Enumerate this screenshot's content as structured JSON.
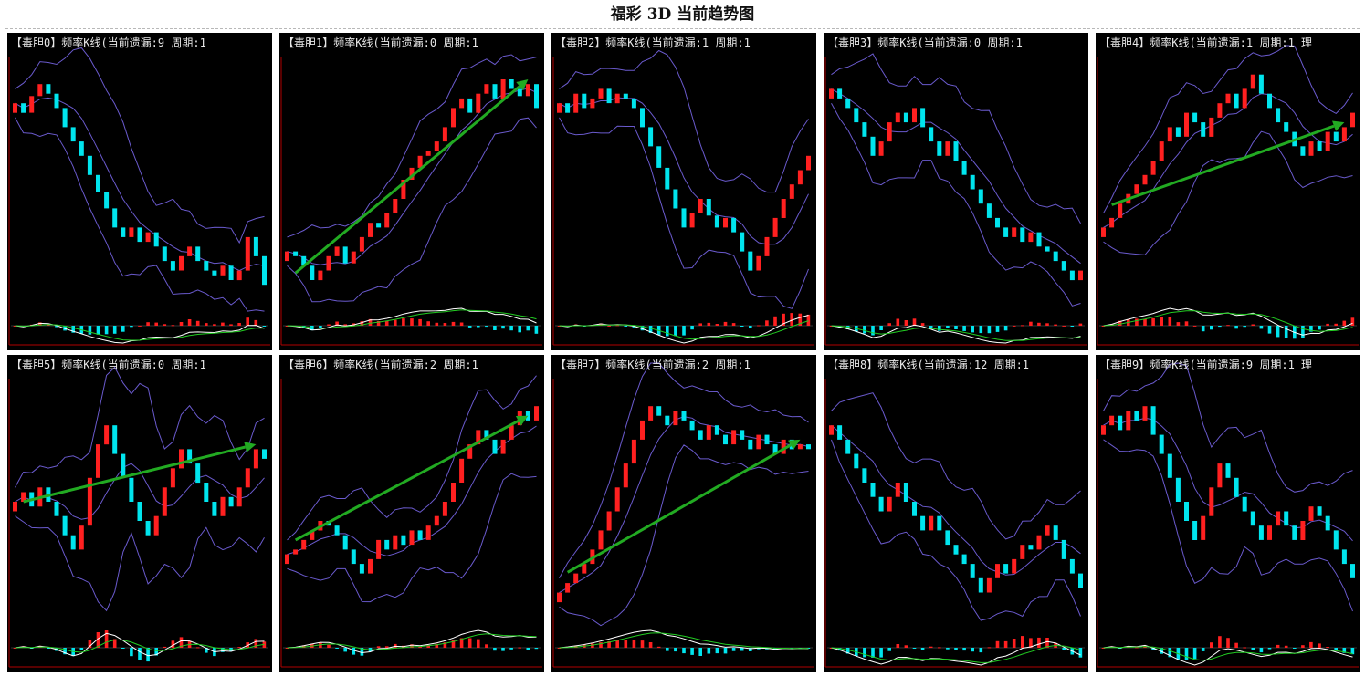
{
  "title": "福彩 3D 当前趋势图",
  "colors": {
    "background": "#000000",
    "up_candle": "#ff2020",
    "down_candle": "#00e5ee",
    "band_line": "#6a5acd",
    "axis": "#b00000",
    "macd_fast": "#ffffff",
    "macd_slow": "#22cc22",
    "trend_arrow": "#22aa22"
  },
  "chart_data": [
    {
      "type": "candlestick",
      "label": "【毒胆0】频率K线(当前遗漏:9 周期:1",
      "arrow": false,
      "closes": [
        0.82,
        0.78,
        0.85,
        0.9,
        0.86,
        0.8,
        0.72,
        0.66,
        0.6,
        0.52,
        0.45,
        0.38,
        0.3,
        0.26,
        0.3,
        0.24,
        0.28,
        0.22,
        0.16,
        0.12,
        0.18,
        0.22,
        0.16,
        0.12,
        0.1,
        0.14,
        0.08,
        0.12,
        0.26,
        0.18,
        0.06
      ]
    },
    {
      "type": "candlestick",
      "label": "【毒胆1】频率K线(当前遗漏:0 周期:1",
      "arrow": true,
      "closes": [
        0.2,
        0.18,
        0.14,
        0.08,
        0.12,
        0.18,
        0.22,
        0.15,
        0.2,
        0.26,
        0.32,
        0.3,
        0.36,
        0.42,
        0.5,
        0.55,
        0.6,
        0.62,
        0.66,
        0.72,
        0.8,
        0.84,
        0.78,
        0.86,
        0.9,
        0.84,
        0.92,
        0.88,
        0.85,
        0.9,
        0.8
      ]
    },
    {
      "type": "candlestick",
      "label": "【毒胆2】频率K线(当前遗漏:1 周期:1",
      "arrow": false,
      "closes": [
        0.82,
        0.78,
        0.86,
        0.8,
        0.84,
        0.88,
        0.82,
        0.86,
        0.84,
        0.8,
        0.72,
        0.64,
        0.55,
        0.46,
        0.38,
        0.3,
        0.36,
        0.42,
        0.35,
        0.3,
        0.34,
        0.28,
        0.2,
        0.12,
        0.18,
        0.26,
        0.34,
        0.42,
        0.48,
        0.54,
        0.6
      ]
    },
    {
      "type": "candlestick",
      "label": "【毒胆3】频率K线(当前遗漏:0 周期:1",
      "arrow": false,
      "closes": [
        0.88,
        0.84,
        0.8,
        0.74,
        0.68,
        0.6,
        0.66,
        0.74,
        0.78,
        0.74,
        0.8,
        0.72,
        0.66,
        0.6,
        0.66,
        0.58,
        0.52,
        0.46,
        0.4,
        0.34,
        0.3,
        0.26,
        0.3,
        0.24,
        0.28,
        0.22,
        0.2,
        0.16,
        0.12,
        0.08,
        0.12
      ]
    },
    {
      "type": "candlestick",
      "label": "【毒胆4】频率K线(当前遗漏:1 周期:1 理",
      "arrow": true,
      "closes": [
        0.3,
        0.34,
        0.4,
        0.44,
        0.48,
        0.52,
        0.58,
        0.66,
        0.72,
        0.68,
        0.78,
        0.74,
        0.68,
        0.76,
        0.82,
        0.86,
        0.8,
        0.88,
        0.94,
        0.86,
        0.8,
        0.74,
        0.7,
        0.64,
        0.6,
        0.66,
        0.62,
        0.7,
        0.66,
        0.72,
        0.78
      ]
    },
    {
      "type": "candlestick",
      "label": "【毒胆5】频率K线(当前遗漏:0 周期:1",
      "arrow": true,
      "closes": [
        0.5,
        0.54,
        0.48,
        0.56,
        0.5,
        0.44,
        0.36,
        0.3,
        0.4,
        0.6,
        0.74,
        0.82,
        0.7,
        0.6,
        0.5,
        0.42,
        0.36,
        0.44,
        0.56,
        0.64,
        0.72,
        0.66,
        0.58,
        0.5,
        0.44,
        0.52,
        0.48,
        0.56,
        0.64,
        0.72,
        0.68
      ]
    },
    {
      "type": "candlestick",
      "label": "【毒胆6】频率K线(当前遗漏:2 周期:1",
      "arrow": true,
      "closes": [
        0.28,
        0.3,
        0.34,
        0.38,
        0.42,
        0.4,
        0.36,
        0.3,
        0.24,
        0.2,
        0.26,
        0.34,
        0.3,
        0.36,
        0.32,
        0.38,
        0.34,
        0.4,
        0.44,
        0.5,
        0.58,
        0.68,
        0.74,
        0.8,
        0.76,
        0.7,
        0.76,
        0.82,
        0.88,
        0.84,
        0.9
      ]
    },
    {
      "type": "candlestick",
      "label": "【毒胆7】频率K线(当前遗漏:2 周期:1",
      "arrow": true,
      "closes": [
        0.12,
        0.16,
        0.2,
        0.24,
        0.3,
        0.38,
        0.46,
        0.56,
        0.66,
        0.76,
        0.84,
        0.9,
        0.86,
        0.82,
        0.88,
        0.84,
        0.8,
        0.76,
        0.82,
        0.78,
        0.74,
        0.8,
        0.76,
        0.72,
        0.78,
        0.74,
        0.7,
        0.76,
        0.72,
        0.74,
        0.72
      ]
    },
    {
      "type": "candlestick",
      "label": "【毒胆8】频率K线(当前遗漏:12 周期:1",
      "arrow": false,
      "closes": [
        0.82,
        0.76,
        0.7,
        0.64,
        0.58,
        0.52,
        0.46,
        0.52,
        0.58,
        0.5,
        0.44,
        0.38,
        0.44,
        0.38,
        0.32,
        0.28,
        0.24,
        0.18,
        0.12,
        0.18,
        0.24,
        0.2,
        0.26,
        0.32,
        0.3,
        0.36,
        0.4,
        0.34,
        0.26,
        0.2,
        0.14
      ]
    },
    {
      "type": "candlestick",
      "label": "【毒胆9】频率K线(当前遗漏:9 周期:1 理",
      "arrow": false,
      "closes": [
        0.82,
        0.86,
        0.8,
        0.88,
        0.84,
        0.9,
        0.78,
        0.7,
        0.6,
        0.5,
        0.42,
        0.34,
        0.44,
        0.56,
        0.66,
        0.6,
        0.52,
        0.46,
        0.4,
        0.34,
        0.4,
        0.46,
        0.4,
        0.34,
        0.42,
        0.48,
        0.44,
        0.38,
        0.3,
        0.24,
        0.18
      ]
    }
  ]
}
